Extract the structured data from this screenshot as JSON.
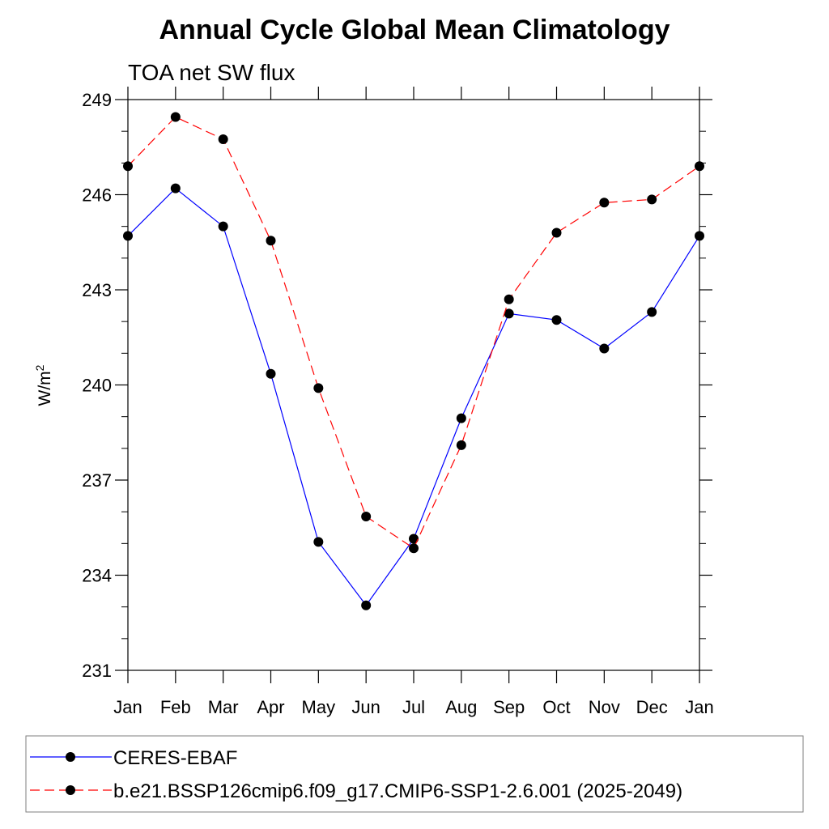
{
  "chart_data": {
    "type": "line",
    "title": "Annual Cycle Global Mean Climatology",
    "subtitle": "TOA net SW flux",
    "ylabel": "W/m",
    "ylabel_superscript": "2",
    "xlabel": "",
    "categories": [
      "Jan",
      "Feb",
      "Mar",
      "Apr",
      "May",
      "Jun",
      "Jul",
      "Aug",
      "Sep",
      "Oct",
      "Nov",
      "Dec",
      "Jan"
    ],
    "ylim": [
      231,
      249
    ],
    "yticks": [
      231,
      234,
      237,
      240,
      243,
      246,
      249
    ],
    "grid": false,
    "legend_placement": "bottom",
    "series": [
      {
        "name": "CERES-EBAF",
        "color": "#0000ff",
        "dash": "solid",
        "marker": "filled-circle",
        "values": [
          244.7,
          246.2,
          245.0,
          240.35,
          235.05,
          233.05,
          235.15,
          238.95,
          242.25,
          242.05,
          241.15,
          242.3,
          244.7
        ]
      },
      {
        "name": "b.e21.BSSP126cmip6.f09_g17.CMIP6-SSP1-2.6.001 (2025-2049)",
        "color": "#ff0000",
        "dash": "dashed",
        "marker": "filled-circle",
        "values": [
          246.9,
          248.45,
          247.75,
          244.55,
          239.9,
          235.85,
          234.85,
          238.1,
          242.7,
          244.8,
          245.75,
          245.85,
          246.9
        ]
      }
    ]
  }
}
